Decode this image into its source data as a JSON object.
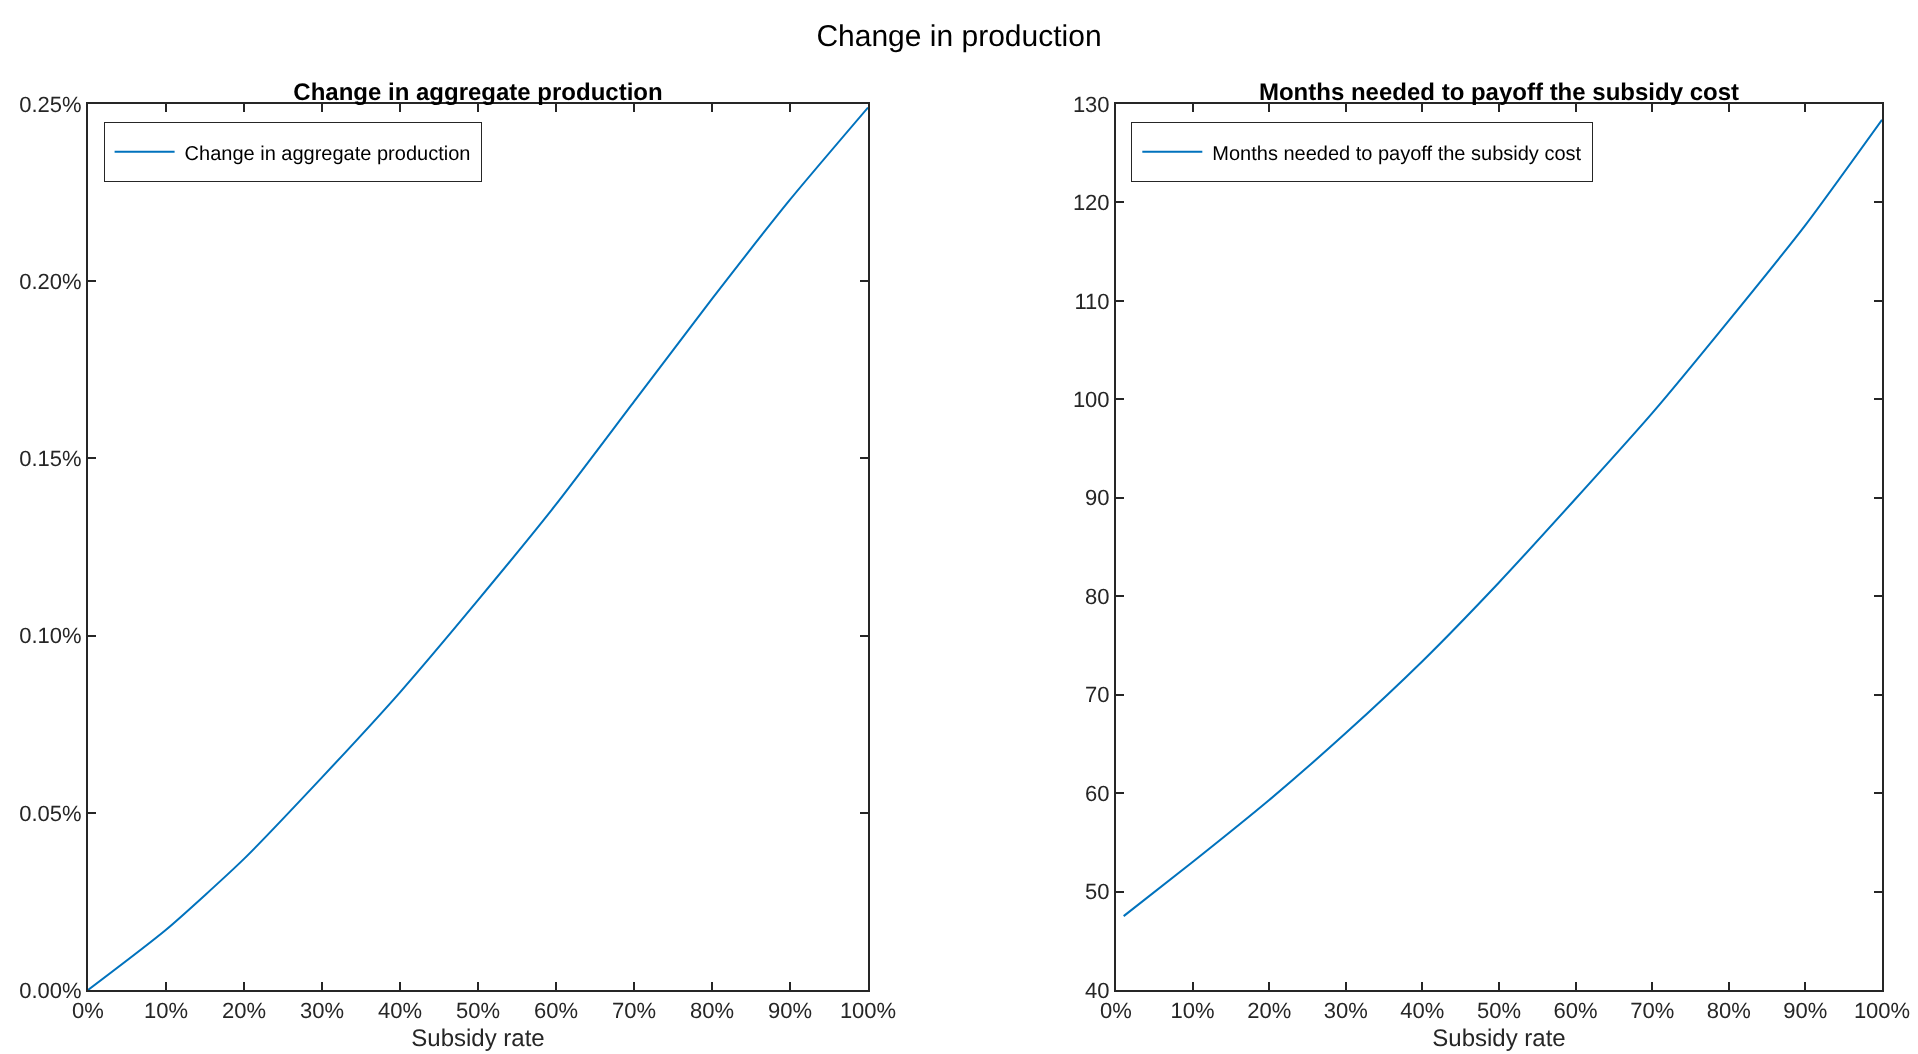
{
  "chart_data": [
    {
      "type": "line",
      "title": "Change in aggregate production",
      "xlabel": "Subsidy rate",
      "annotations": [
        "Change in production"
      ],
      "x": [
        0,
        10,
        20,
        30,
        40,
        50,
        60,
        70,
        80,
        90,
        100
      ],
      "series": [
        {
          "name": "Change in aggregate production",
          "color": "#0072bd",
          "values": [
            0,
            0.017,
            0.037,
            0.06,
            0.084,
            0.11,
            0.137,
            0.166,
            0.195,
            0.223,
            0.249
          ]
        }
      ],
      "xlim": [
        0,
        100
      ],
      "xticks": [
        {
          "value": 0,
          "label": "0%"
        },
        {
          "value": 10,
          "label": "10%"
        },
        {
          "value": 20,
          "label": "20%"
        },
        {
          "value": 30,
          "label": "30%"
        },
        {
          "value": 40,
          "label": "40%"
        },
        {
          "value": 50,
          "label": "50%"
        },
        {
          "value": 60,
          "label": "60%"
        },
        {
          "value": 70,
          "label": "70%"
        },
        {
          "value": 80,
          "label": "80%"
        },
        {
          "value": 90,
          "label": "90%"
        },
        {
          "value": 100,
          "label": "100%"
        }
      ],
      "ylim": [
        0,
        0.25
      ],
      "yticks": [
        {
          "value": 0,
          "label": "0.00%"
        },
        {
          "value": 0.05,
          "label": "0.05%"
        },
        {
          "value": 0.1,
          "label": "0.10%"
        },
        {
          "value": 0.15,
          "label": "0.15%"
        },
        {
          "value": 0.2,
          "label": "0.20%"
        },
        {
          "value": 0.25,
          "label": "0.25%"
        }
      ],
      "grid": false,
      "legend": "top left",
      "marker": "none",
      "line_style": "solid"
    },
    {
      "type": "line",
      "title": "Months needed to payoff the subsidy cost",
      "xlabel": "Subsidy rate",
      "x": [
        1,
        10,
        20,
        30,
        40,
        50,
        60,
        70,
        80,
        90,
        100
      ],
      "series": [
        {
          "name": "Months needed to payoff the subsidy cost",
          "color": "#0072bd",
          "values": [
            47.5,
            53.0,
            59.3,
            66.1,
            73.4,
            81.4,
            89.9,
            98.6,
            108.0,
            117.7,
            128.4
          ]
        }
      ],
      "xlim": [
        0,
        100
      ],
      "xticks": [
        {
          "value": 0,
          "label": "0%"
        },
        {
          "value": 10,
          "label": "10%"
        },
        {
          "value": 20,
          "label": "20%"
        },
        {
          "value": 30,
          "label": "30%"
        },
        {
          "value": 40,
          "label": "40%"
        },
        {
          "value": 50,
          "label": "50%"
        },
        {
          "value": 60,
          "label": "60%"
        },
        {
          "value": 70,
          "label": "70%"
        },
        {
          "value": 80,
          "label": "80%"
        },
        {
          "value": 90,
          "label": "90%"
        },
        {
          "value": 100,
          "label": "100%"
        }
      ],
      "ylim": [
        40,
        130
      ],
      "yticks": [
        40,
        50,
        60,
        70,
        80,
        90,
        100,
        110,
        120,
        130
      ],
      "grid": false,
      "legend": "top left",
      "marker": "none",
      "line_style": "solid"
    }
  ]
}
